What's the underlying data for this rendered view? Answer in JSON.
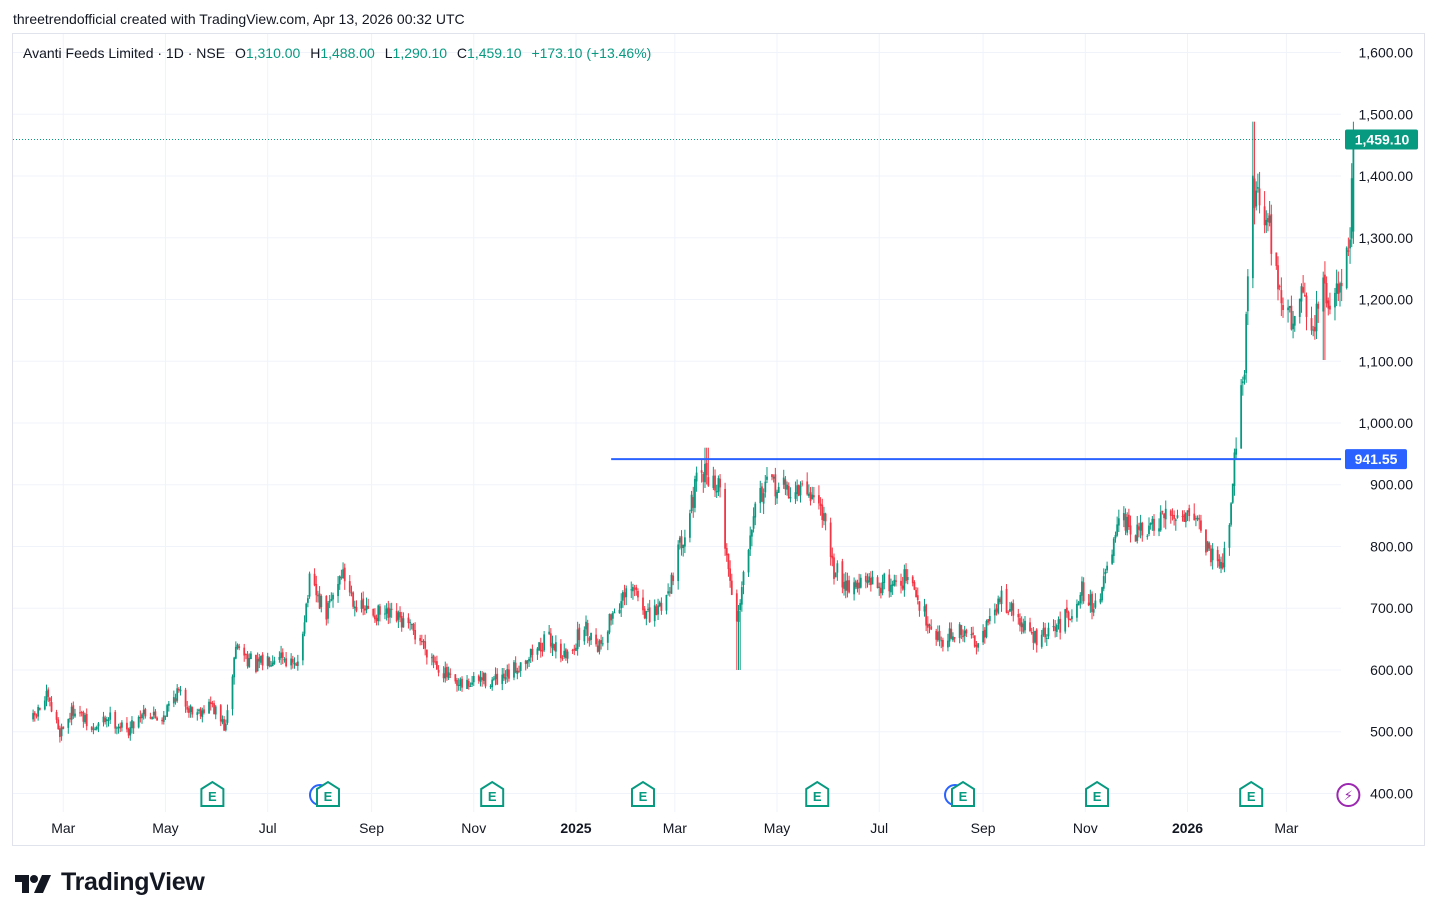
{
  "header": {
    "credit": "threetrendofficial created with TradingView.com, Apr 13, 2026 00:32 UTC"
  },
  "legend": {
    "symbol": "Avanti Feeds Limited · 1D · NSE",
    "o_label": "O",
    "o_value": "1,310.00",
    "h_label": "H",
    "h_value": "1,488.00",
    "l_label": "L",
    "l_value": "1,290.10",
    "c_label": "C",
    "c_value": "1,459.10",
    "change": "+173.10 (+13.46%)"
  },
  "logo": {
    "text": "TradingView"
  },
  "colors": {
    "up": "#089981",
    "down": "#f23645",
    "grid": "#f0f3fa",
    "hline": "#2962ff",
    "earnings": "#089981",
    "dividend": "#9c27b0",
    "split": "#2962ff"
  },
  "chart_data": {
    "type": "candlestick",
    "ylim": [
      370,
      1630
    ],
    "y_ticks": [
      "1,600.00",
      "1,500.00",
      "1,400.00",
      "1,300.00",
      "1,200.00",
      "1,100.00",
      "1,000.00",
      "900.00",
      "800.00",
      "700.00",
      "600.00",
      "500.00",
      "400.00"
    ],
    "y_tick_values": [
      1600,
      1500,
      1400,
      1300,
      1200,
      1100,
      1000,
      900,
      800,
      700,
      600,
      500,
      400
    ],
    "x_ticks": [
      {
        "label": "Mar",
        "bold": false
      },
      {
        "label": "May",
        "bold": false
      },
      {
        "label": "Jul",
        "bold": false
      },
      {
        "label": "Sep",
        "bold": false
      },
      {
        "label": "Nov",
        "bold": false
      },
      {
        "label": "2025",
        "bold": true
      },
      {
        "label": "Mar",
        "bold": false
      },
      {
        "label": "May",
        "bold": false
      },
      {
        "label": "Jul",
        "bold": false
      },
      {
        "label": "Sep",
        "bold": false
      },
      {
        "label": "Nov",
        "bold": false
      },
      {
        "label": "2026",
        "bold": true
      },
      {
        "label": "Mar",
        "bold": false
      }
    ],
    "last_price": 1459.1,
    "last_price_label": "1,459.10",
    "horizontal_line": {
      "value": 941.55,
      "label": "941.55",
      "start": "2025-01-22"
    },
    "series_path": [
      [
        "2024-02-12",
        520
      ],
      [
        "2024-02-20",
        555
      ],
      [
        "2024-02-28",
        500
      ],
      [
        "2024-03-08",
        540
      ],
      [
        "2024-03-18",
        500
      ],
      [
        "2024-03-28",
        525
      ],
      [
        "2024-04-08",
        500
      ],
      [
        "2024-04-18",
        535
      ],
      [
        "2024-04-28",
        520
      ],
      [
        "2024-05-08",
        565
      ],
      [
        "2024-05-18",
        530
      ],
      [
        "2024-05-28",
        545
      ],
      [
        "2024-06-06",
        505
      ],
      [
        "2024-06-12",
        640
      ],
      [
        "2024-06-24",
        605
      ],
      [
        "2024-07-08",
        630
      ],
      [
        "2024-07-18",
        600
      ],
      [
        "2024-07-26",
        740
      ],
      [
        "2024-08-05",
        690
      ],
      [
        "2024-08-14",
        760
      ],
      [
        "2024-08-24",
        700
      ],
      [
        "2024-09-05",
        690
      ],
      [
        "2024-09-18",
        680
      ],
      [
        "2024-09-30",
        650
      ],
      [
        "2024-10-10",
        610
      ],
      [
        "2024-10-22",
        570
      ],
      [
        "2024-11-05",
        585
      ],
      [
        "2024-11-18",
        580
      ],
      [
        "2024-12-02",
        620
      ],
      [
        "2024-12-16",
        650
      ],
      [
        "2024-12-26",
        620
      ],
      [
        "2025-01-06",
        670
      ],
      [
        "2025-01-15",
        640
      ],
      [
        "2025-01-24",
        700
      ],
      [
        "2025-02-05",
        730
      ],
      [
        "2025-02-14",
        680
      ],
      [
        "2025-02-24",
        720
      ],
      [
        "2025-03-06",
        820
      ],
      [
        "2025-03-14",
        900
      ],
      [
        "2025-03-20",
        920
      ],
      [
        "2025-03-28",
        890
      ],
      [
        "2025-04-02",
        760
      ],
      [
        "2025-04-07",
        680
      ],
      [
        "2025-04-10",
        740
      ],
      [
        "2025-04-18",
        880
      ],
      [
        "2025-04-28",
        900
      ],
      [
        "2025-05-08",
        890
      ],
      [
        "2025-05-20",
        890
      ],
      [
        "2025-05-28",
        860
      ],
      [
        "2025-06-02",
        770
      ],
      [
        "2025-06-12",
        740
      ],
      [
        "2025-06-25",
        740
      ],
      [
        "2025-07-08",
        740
      ],
      [
        "2025-07-18",
        750
      ],
      [
        "2025-07-26",
        700
      ],
      [
        "2025-08-06",
        650
      ],
      [
        "2025-08-18",
        660
      ],
      [
        "2025-08-28",
        650
      ],
      [
        "2025-09-06",
        680
      ],
      [
        "2025-09-12",
        720
      ],
      [
        "2025-09-22",
        680
      ],
      [
        "2025-10-02",
        650
      ],
      [
        "2025-10-12",
        660
      ],
      [
        "2025-10-22",
        690
      ],
      [
        "2025-10-30",
        730
      ],
      [
        "2025-11-06",
        700
      ],
      [
        "2025-11-14",
        760
      ],
      [
        "2025-11-22",
        840
      ],
      [
        "2025-12-02",
        820
      ],
      [
        "2025-12-12",
        830
      ],
      [
        "2025-12-22",
        850
      ],
      [
        "2026-01-05",
        860
      ],
      [
        "2026-01-14",
        790
      ],
      [
        "2026-01-24",
        780
      ],
      [
        "2026-01-28",
        920
      ],
      [
        "2026-02-04",
        1100
      ],
      [
        "2026-02-08",
        1380
      ],
      [
        "2026-02-14",
        1360
      ],
      [
        "2026-02-20",
        1300
      ],
      [
        "2026-02-26",
        1200
      ],
      [
        "2026-03-04",
        1160
      ],
      [
        "2026-03-10",
        1230
      ],
      [
        "2026-03-16",
        1140
      ],
      [
        "2026-03-22",
        1220
      ],
      [
        "2026-03-28",
        1180
      ],
      [
        "2026-04-04",
        1250
      ],
      [
        "2026-04-08",
        1310
      ],
      [
        "2026-04-10",
        1459.1
      ]
    ],
    "last_candle": {
      "date": "2026-04-10",
      "open": 1310.0,
      "high": 1488.0,
      "low": 1290.1,
      "close": 1459.1
    },
    "notable_extremes": [
      {
        "date": "2025-03-20",
        "high": 960
      },
      {
        "date": "2025-04-08",
        "low": 600
      },
      {
        "date": "2026-02-09",
        "high": 1488
      },
      {
        "date": "2026-03-23",
        "low": 1102
      }
    ],
    "events": [
      {
        "type": "earnings",
        "label": "E",
        "date": "2024-05-29"
      },
      {
        "type": "earnings",
        "label": "E",
        "date": "2024-08-06",
        "split": true
      },
      {
        "type": "earnings",
        "label": "E",
        "date": "2024-11-12"
      },
      {
        "type": "earnings",
        "label": "E",
        "date": "2025-02-10"
      },
      {
        "type": "earnings",
        "label": "E",
        "date": "2025-05-25"
      },
      {
        "type": "earnings",
        "label": "E",
        "date": "2025-08-20",
        "split": true
      },
      {
        "type": "earnings",
        "label": "E",
        "date": "2025-11-08"
      },
      {
        "type": "earnings",
        "label": "E",
        "date": "2026-02-08"
      },
      {
        "type": "dividend",
        "label": "⚡",
        "date": "2026-04-07"
      }
    ]
  }
}
